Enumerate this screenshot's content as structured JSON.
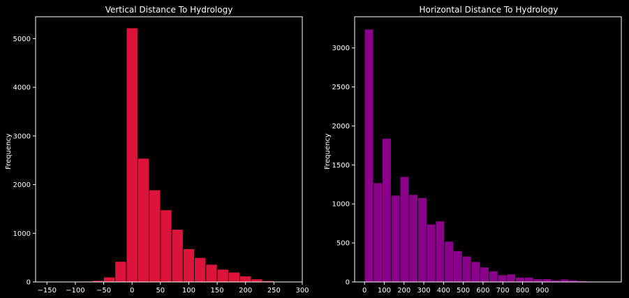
{
  "chart_data": [
    {
      "type": "bar",
      "title": "Vertical Distance To Hydrology",
      "xlabel": "",
      "ylabel": "Frequency",
      "bar_color": "#dc143c",
      "xlim": [
        -170,
        300
      ],
      "ylim": [
        0,
        5450
      ],
      "xticks": [
        -150,
        -100,
        -50,
        0,
        50,
        100,
        150,
        200,
        250,
        300
      ],
      "xtick_labels": [
        "−150",
        "−100",
        "−50",
        "0",
        "50",
        "100",
        "150",
        "200",
        "250",
        "300"
      ],
      "yticks": [
        0,
        1000,
        2000,
        3000,
        4000,
        5000
      ],
      "bin_width": 20,
      "bins": [
        {
          "x0": -150,
          "value": 0
        },
        {
          "x0": -130,
          "value": 2
        },
        {
          "x0": -110,
          "value": 8
        },
        {
          "x0": -90,
          "value": 15
        },
        {
          "x0": -70,
          "value": 30
        },
        {
          "x0": -50,
          "value": 100
        },
        {
          "x0": -30,
          "value": 420
        },
        {
          "x0": -10,
          "value": 5220
        },
        {
          "x0": 10,
          "value": 2540
        },
        {
          "x0": 30,
          "value": 1890
        },
        {
          "x0": 50,
          "value": 1480
        },
        {
          "x0": 70,
          "value": 1080
        },
        {
          "x0": 90,
          "value": 680
        },
        {
          "x0": 110,
          "value": 500
        },
        {
          "x0": 130,
          "value": 360
        },
        {
          "x0": 150,
          "value": 260
        },
        {
          "x0": 170,
          "value": 200
        },
        {
          "x0": 190,
          "value": 120
        },
        {
          "x0": 210,
          "value": 60
        },
        {
          "x0": 230,
          "value": 25
        },
        {
          "x0": 250,
          "value": 10
        },
        {
          "x0": 270,
          "value": 3
        }
      ]
    },
    {
      "type": "bar",
      "title": "Horizontal Distance To Hydrology",
      "xlabel": "",
      "ylabel": "Frequency",
      "bar_color": "#8b008b",
      "xlim": [
        -50,
        1300
      ],
      "ylim": [
        0,
        3400
      ],
      "xticks": [
        0,
        100,
        200,
        300,
        400,
        500,
        600,
        700,
        800,
        900
      ],
      "xtick_labels": [
        "0",
        "100",
        "200",
        "300",
        "400",
        "500",
        "600",
        "700",
        "800",
        "900"
      ],
      "yticks": [
        0,
        500,
        1000,
        1500,
        2000,
        2500,
        3000
      ],
      "bin_width": 45,
      "bins": [
        {
          "x0": 0,
          "value": 3240
        },
        {
          "x0": 45,
          "value": 1270
        },
        {
          "x0": 90,
          "value": 1840
        },
        {
          "x0": 135,
          "value": 1110
        },
        {
          "x0": 180,
          "value": 1350
        },
        {
          "x0": 225,
          "value": 1120
        },
        {
          "x0": 270,
          "value": 1080
        },
        {
          "x0": 315,
          "value": 740
        },
        {
          "x0": 360,
          "value": 780
        },
        {
          "x0": 405,
          "value": 520
        },
        {
          "x0": 450,
          "value": 400
        },
        {
          "x0": 495,
          "value": 330
        },
        {
          "x0": 540,
          "value": 260
        },
        {
          "x0": 585,
          "value": 190
        },
        {
          "x0": 630,
          "value": 140
        },
        {
          "x0": 675,
          "value": 90
        },
        {
          "x0": 720,
          "value": 100
        },
        {
          "x0": 765,
          "value": 60
        },
        {
          "x0": 810,
          "value": 60
        },
        {
          "x0": 855,
          "value": 40
        },
        {
          "x0": 900,
          "value": 40
        },
        {
          "x0": 945,
          "value": 25
        },
        {
          "x0": 990,
          "value": 35
        },
        {
          "x0": 1035,
          "value": 25
        },
        {
          "x0": 1080,
          "value": 15
        },
        {
          "x0": 1125,
          "value": 10
        }
      ]
    }
  ]
}
